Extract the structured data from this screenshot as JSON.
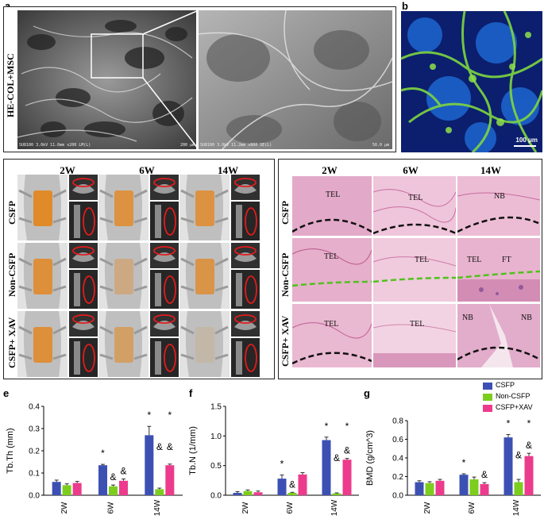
{
  "panels": {
    "a": {
      "letter": "a",
      "row_label": "HE-COL+MSC",
      "caption_left": "SU8100 3.0kV 11.6mm x200 LM(L)",
      "scale_left": "200 μm",
      "caption_right": "SU8100 3.0kV 11.2mm x800 SE(L)",
      "scale_right": "50.0 μm"
    },
    "b": {
      "letter": "b",
      "scale": "100 μm"
    },
    "c": {
      "letter": "c",
      "columns": [
        "2W",
        "6W",
        "14W"
      ],
      "rows": [
        "CSFP",
        "Non-CSFP",
        "CSFP+ XAV"
      ]
    },
    "d": {
      "letter": "d",
      "columns": [
        "2W",
        "6W",
        "14W"
      ],
      "rows": [
        "CSFP",
        "Non-CSFP",
        "CSFP+ XAV"
      ],
      "labels": [
        [
          "TEL",
          "TEL",
          "NB"
        ],
        [
          "TEL",
          "TEL",
          "TEL",
          "FT"
        ],
        [
          "TEL",
          "TEL",
          "NB",
          "NB"
        ]
      ]
    },
    "e": {
      "letter": "e"
    },
    "f": {
      "letter": "f"
    },
    "g": {
      "letter": "g"
    }
  },
  "legend": {
    "items": [
      {
        "name": "CSFP",
        "color": "#3c50b4"
      },
      {
        "name": "Non-CSFP",
        "color": "#7ccd1e"
      },
      {
        "name": "CSFP+XAV",
        "color": "#ec3b8c"
      }
    ]
  },
  "chart_data": [
    {
      "id": "e",
      "type": "bar",
      "categories": [
        "2W",
        "6W",
        "14W"
      ],
      "ylabel": "Tb.Th (mm)",
      "ylim": [
        0,
        0.4
      ],
      "yticks": [
        0.0,
        0.1,
        0.2,
        0.3,
        0.4
      ],
      "series": [
        {
          "name": "CSFP",
          "values": [
            0.06,
            0.135,
            0.27
          ],
          "errors": [
            0.008,
            0.004,
            0.04
          ]
        },
        {
          "name": "Non-CSFP",
          "values": [
            0.045,
            0.04,
            0.027
          ],
          "errors": [
            0.006,
            0.006,
            0.005
          ]
        },
        {
          "name": "CSFP+XAV",
          "values": [
            0.055,
            0.065,
            0.135
          ],
          "errors": [
            0.007,
            0.008,
            0.005
          ]
        }
      ],
      "annotations": [
        {
          "group": 1,
          "series": 0,
          "mark": "*"
        },
        {
          "group": 1,
          "series": 1,
          "mark": "&"
        },
        {
          "group": 1,
          "series": 2,
          "mark": "&"
        },
        {
          "group": 2,
          "series": 0,
          "mark": "*"
        },
        {
          "group": 2,
          "series": 1,
          "mark": "&"
        },
        {
          "group": 2,
          "series": 2,
          "mark": "&"
        },
        {
          "group": 2,
          "series": 2,
          "mark": "*"
        }
      ]
    },
    {
      "id": "f",
      "type": "bar",
      "categories": [
        "2W",
        "6W",
        "14W"
      ],
      "ylabel": "Tb.N (1/mm)",
      "ylim": [
        0,
        1.5
      ],
      "yticks": [
        0.0,
        0.5,
        1.0,
        1.5
      ],
      "series": [
        {
          "name": "CSFP",
          "values": [
            0.04,
            0.28,
            0.93
          ],
          "errors": [
            0.02,
            0.06,
            0.05
          ]
        },
        {
          "name": "Non-CSFP",
          "values": [
            0.07,
            0.04,
            0.03
          ],
          "errors": [
            0.02,
            0.01,
            0.01
          ]
        },
        {
          "name": "CSFP+XAV",
          "values": [
            0.05,
            0.35,
            0.6
          ],
          "errors": [
            0.02,
            0.03,
            0.02
          ]
        }
      ],
      "annotations": [
        {
          "group": 1,
          "series": 0,
          "mark": "*"
        },
        {
          "group": 1,
          "series": 1,
          "mark": "&"
        },
        {
          "group": 2,
          "series": 0,
          "mark": "*"
        },
        {
          "group": 2,
          "series": 1,
          "mark": "&"
        },
        {
          "group": 2,
          "series": 2,
          "mark": "&"
        },
        {
          "group": 2,
          "series": 2,
          "mark": "*"
        }
      ]
    },
    {
      "id": "g",
      "type": "bar",
      "categories": [
        "2W",
        "6W",
        "14W"
      ],
      "ylabel": "BMD (g/cm^3)",
      "ylim": [
        0,
        0.8
      ],
      "yticks": [
        0.0,
        0.2,
        0.4,
        0.6,
        0.8
      ],
      "series": [
        {
          "name": "CSFP",
          "values": [
            0.14,
            0.22,
            0.62
          ],
          "errors": [
            0.015,
            0.01,
            0.03
          ]
        },
        {
          "name": "Non-CSFP",
          "values": [
            0.13,
            0.17,
            0.14
          ],
          "errors": [
            0.015,
            0.025,
            0.03
          ]
        },
        {
          "name": "CSFP+XAV",
          "values": [
            0.155,
            0.12,
            0.42
          ],
          "errors": [
            0.015,
            0.015,
            0.03
          ]
        }
      ],
      "annotations": [
        {
          "group": 1,
          "series": 0,
          "mark": "*"
        },
        {
          "group": 1,
          "series": 2,
          "mark": "&"
        },
        {
          "group": 2,
          "series": 0,
          "mark": "*"
        },
        {
          "group": 2,
          "series": 1,
          "mark": "&"
        },
        {
          "group": 2,
          "series": 2,
          "mark": "&"
        },
        {
          "group": 2,
          "series": 2,
          "mark": "*"
        }
      ]
    }
  ]
}
